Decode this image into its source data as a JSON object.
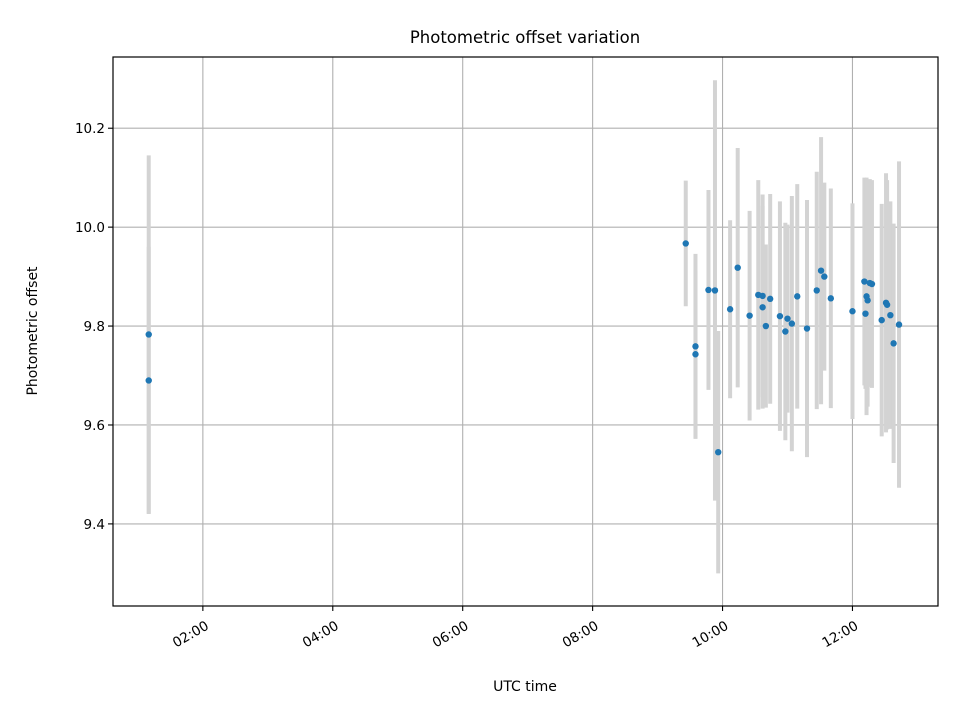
{
  "chart_data": {
    "type": "scatter",
    "title": "Photometric offset variation",
    "xlabel": "UTC time",
    "ylabel": "Photometric offset",
    "x_unit": "hours (UTC)",
    "xlim": [
      "00:37",
      "13:19"
    ],
    "ylim": [
      9.234,
      10.344
    ],
    "xticks": [
      "02:00",
      "04:00",
      "06:00",
      "08:00",
      "10:00",
      "12:00"
    ],
    "yticks": [
      "9.4",
      "9.6",
      "9.8",
      "10.0",
      "10.2"
    ],
    "grid": true,
    "marker_color": "#1f77b4",
    "errorbar_color": "#d3d3d3",
    "points": [
      {
        "x": "01:10",
        "y": 9.783,
        "err": 0.362
      },
      {
        "x": "01:10",
        "y": 9.69,
        "err": 0.27
      },
      {
        "x": "09:26",
        "y": 9.967,
        "err": 0.127
      },
      {
        "x": "09:35",
        "y": 9.759,
        "err": 0.187
      },
      {
        "x": "09:35",
        "y": 9.743,
        "err": 0.17
      },
      {
        "x": "09:47",
        "y": 9.873,
        "err": 0.202
      },
      {
        "x": "09:53",
        "y": 9.872,
        "err": 0.425
      },
      {
        "x": "09:56",
        "y": 9.545,
        "err": 0.245
      },
      {
        "x": "10:07",
        "y": 9.834,
        "err": 0.18
      },
      {
        "x": "10:14",
        "y": 9.918,
        "err": 0.242
      },
      {
        "x": "10:25",
        "y": 9.821,
        "err": 0.212
      },
      {
        "x": "10:33",
        "y": 9.863,
        "err": 0.232
      },
      {
        "x": "10:37",
        "y": 9.861,
        "err": 0.205
      },
      {
        "x": "10:37",
        "y": 9.838,
        "err": 0.205
      },
      {
        "x": "10:40",
        "y": 9.8,
        "err": 0.165
      },
      {
        "x": "10:44",
        "y": 9.855,
        "err": 0.212
      },
      {
        "x": "10:53",
        "y": 9.82,
        "err": 0.232
      },
      {
        "x": "10:58",
        "y": 9.789,
        "err": 0.22
      },
      {
        "x": "11:00",
        "y": 9.815,
        "err": 0.19
      },
      {
        "x": "11:04",
        "y": 9.805,
        "err": 0.258
      },
      {
        "x": "11:09",
        "y": 9.86,
        "err": 0.227
      },
      {
        "x": "11:18",
        "y": 9.795,
        "err": 0.26
      },
      {
        "x": "11:27",
        "y": 9.872,
        "err": 0.24
      },
      {
        "x": "11:31",
        "y": 9.912,
        "err": 0.27
      },
      {
        "x": "11:34",
        "y": 9.9,
        "err": 0.19
      },
      {
        "x": "11:40",
        "y": 9.856,
        "err": 0.222
      },
      {
        "x": "12:00",
        "y": 9.83,
        "err": 0.218
      },
      {
        "x": "12:11",
        "y": 9.89,
        "err": 0.21
      },
      {
        "x": "12:12",
        "y": 9.825,
        "err": 0.152
      },
      {
        "x": "12:13",
        "y": 9.86,
        "err": 0.24
      },
      {
        "x": "12:14",
        "y": 9.852,
        "err": 0.215
      },
      {
        "x": "12:16",
        "y": 9.887,
        "err": 0.21
      },
      {
        "x": "12:18",
        "y": 9.885,
        "err": 0.21
      },
      {
        "x": "12:27",
        "y": 9.812,
        "err": 0.235
      },
      {
        "x": "12:31",
        "y": 9.847,
        "err": 0.262
      },
      {
        "x": "12:32",
        "y": 9.843,
        "err": 0.252
      },
      {
        "x": "12:35",
        "y": 9.822,
        "err": 0.23
      },
      {
        "x": "12:38",
        "y": 9.765,
        "err": 0.242
      },
      {
        "x": "12:43",
        "y": 9.803,
        "err": 0.33
      }
    ]
  }
}
